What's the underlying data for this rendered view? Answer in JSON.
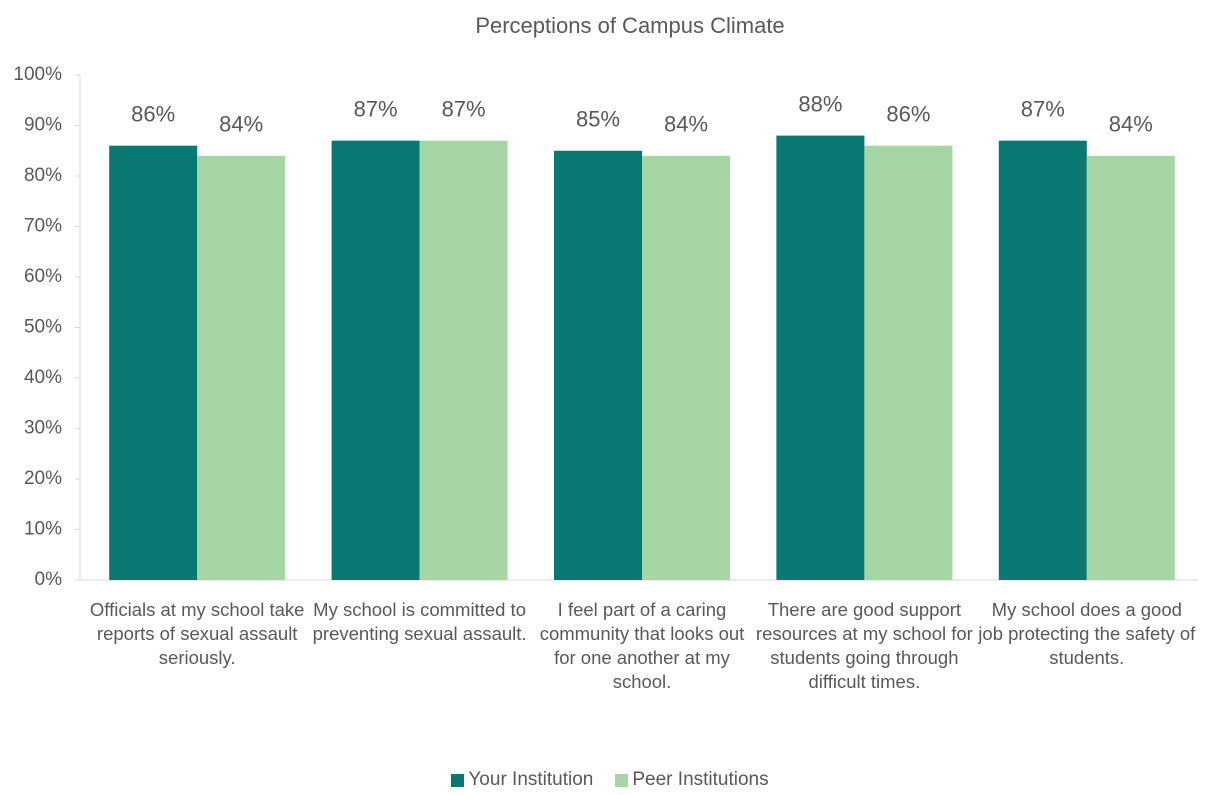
{
  "chart_data": {
    "type": "bar",
    "title": "Perceptions of Campus Climate",
    "categories": [
      "Officials at my school take reports of sexual assault seriously.",
      "My school is committed to preventing sexual assault.",
      "I feel part of a caring community that looks out for one another at my school.",
      "There are good support resources at my school for students going through difficult times.",
      "My school does a good job protecting the safety of students."
    ],
    "series": [
      {
        "name": "Your Institution",
        "color": "#077872",
        "values": [
          86,
          87,
          85,
          88,
          87
        ],
        "value_labels": [
          "86%",
          "87%",
          "85%",
          "88%",
          "87%"
        ]
      },
      {
        "name": "Peer Institutions",
        "color": "#a7d6a5",
        "values": [
          84,
          87,
          84,
          86,
          84
        ],
        "value_labels": [
          "84%",
          "87%",
          "84%",
          "86%",
          "84%"
        ]
      }
    ],
    "ylim": [
      0,
      100
    ],
    "yticks": [
      {
        "value": 0,
        "label": "0%"
      },
      {
        "value": 10,
        "label": "10%"
      },
      {
        "value": 20,
        "label": "20%"
      },
      {
        "value": 30,
        "label": "30%"
      },
      {
        "value": 40,
        "label": "40%"
      },
      {
        "value": 50,
        "label": "50%"
      },
      {
        "value": 60,
        "label": "60%"
      },
      {
        "value": 70,
        "label": "70%"
      },
      {
        "value": 80,
        "label": "80%"
      },
      {
        "value": 90,
        "label": "90%"
      },
      {
        "value": 100,
        "label": "100%"
      }
    ],
    "grid": false,
    "legend": "bottom"
  }
}
